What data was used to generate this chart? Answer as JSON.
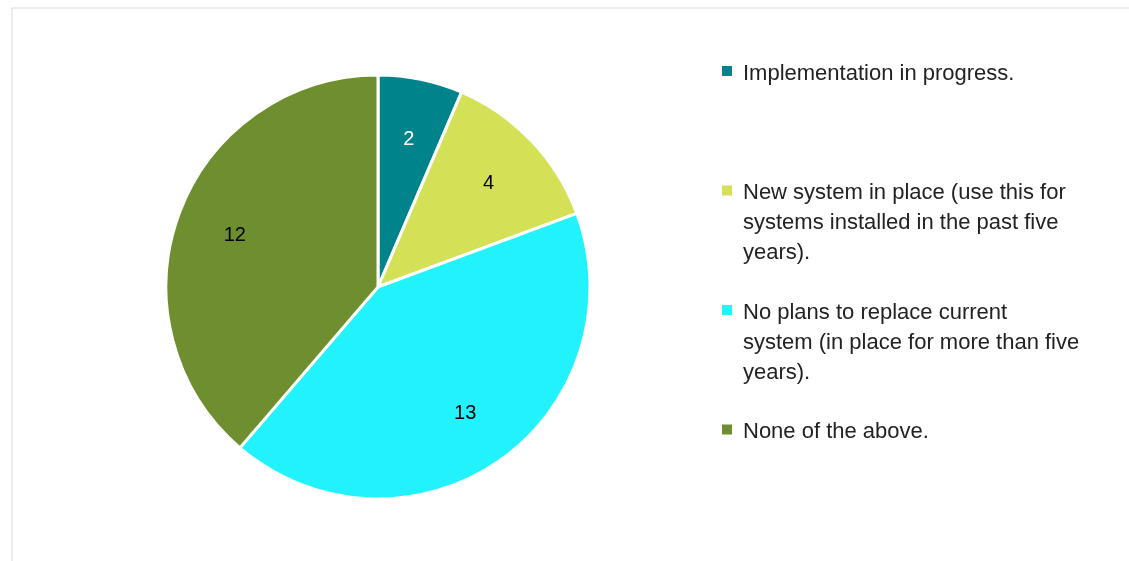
{
  "chart_data": {
    "type": "pie",
    "categories": [
      "Implementation in progress.",
      "New system in place (use this for systems installed in the past five years).",
      "No plans to replace current system (in place for more than five years).",
      "None of the above."
    ],
    "values": [
      2,
      4,
      13,
      12
    ],
    "colors": [
      "#00838a",
      "#d4e157",
      "#22f2fc",
      "#6e8e30"
    ],
    "data_labels": true,
    "legend": "right"
  }
}
